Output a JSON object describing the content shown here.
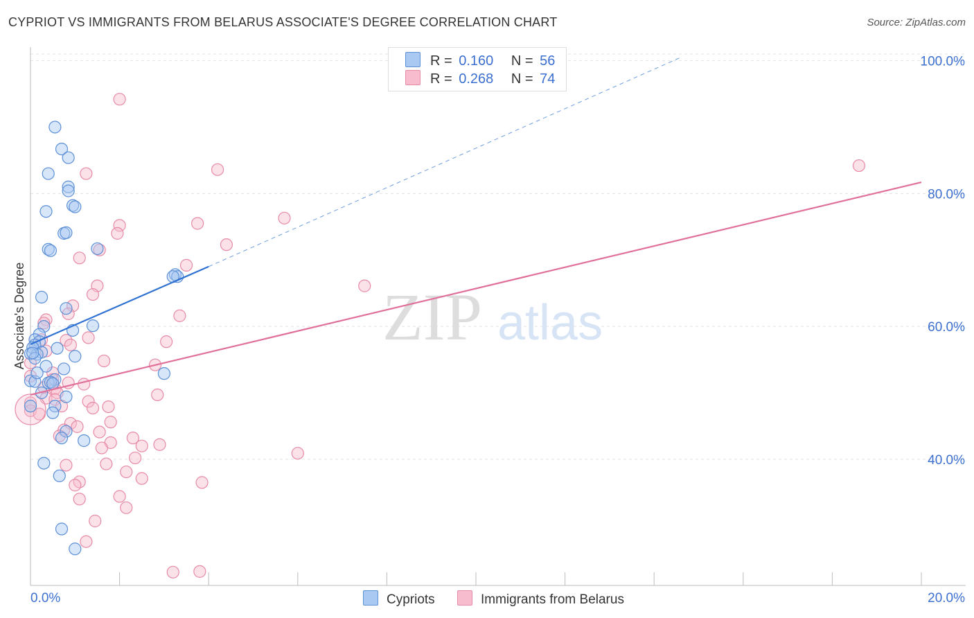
{
  "title": "CYPRIOT VS IMMIGRANTS FROM BELARUS ASSOCIATE'S DEGREE CORRELATION CHART",
  "source": "Source: ZipAtlas.com",
  "watermark": {
    "zip": "ZIP",
    "atlas": "atlas"
  },
  "legend": {
    "r_label": "R =",
    "n_label": "N =",
    "series": [
      {
        "r": "0.160",
        "n": "56"
      },
      {
        "r": "0.268",
        "n": "74"
      }
    ]
  },
  "colors": {
    "cypriots_fill": "#a9c8f2",
    "cypriots_stroke": "#5b8fd6",
    "cypriots_line": "#2f72d3",
    "belarus_fill": "#f7bccd",
    "belarus_stroke": "#e78aa6",
    "belarus_line": "#e0709a",
    "grid": "#e2e2e2",
    "axis_label": "#3b6fd0"
  },
  "chart_data": {
    "type": "scatter",
    "title": "CYPRIOT VS IMMIGRANTS FROM BELARUS ASSOCIATE'S DEGREE CORRELATION CHART",
    "xlabel": "",
    "ylabel": "Associate's Degree",
    "xlim": [
      0,
      20
    ],
    "ylim": [
      21,
      101
    ],
    "x_tick_labels": [
      "0.0%",
      "20.0%"
    ],
    "y_ticks": [
      40,
      60,
      80,
      100
    ],
    "y_tick_labels": [
      "40.0%",
      "60.0%",
      "80.0%",
      "100.0%"
    ],
    "grid": true,
    "legend_position": "top-center",
    "series": [
      {
        "name": "Cypriots",
        "r": 0.16,
        "n": 56,
        "trend": {
          "x": [
            0,
            4
          ],
          "y": [
            57.3,
            69.0
          ]
        },
        "trend_dashed": {
          "x": [
            4,
            14.6
          ],
          "y": [
            69.0,
            100.5
          ]
        },
        "points": [
          [
            0.55,
            90.0
          ],
          [
            0.7,
            86.7
          ],
          [
            0.85,
            85.4
          ],
          [
            0.4,
            83.0
          ],
          [
            0.85,
            81.0
          ],
          [
            0.85,
            80.4
          ],
          [
            0.95,
            78.2
          ],
          [
            1.0,
            78.0
          ],
          [
            0.35,
            77.3
          ],
          [
            0.75,
            74.0
          ],
          [
            0.8,
            74.1
          ],
          [
            0.4,
            71.6
          ],
          [
            0.45,
            71.4
          ],
          [
            1.5,
            71.7
          ],
          [
            3.25,
            67.8
          ],
          [
            3.3,
            67.5
          ],
          [
            3.2,
            67.5
          ],
          [
            0.25,
            64.4
          ],
          [
            0.8,
            62.7
          ],
          [
            1.4,
            60.1
          ],
          [
            0.3,
            60.0
          ],
          [
            0.95,
            59.4
          ],
          [
            0.2,
            58.8
          ],
          [
            0.1,
            58.0
          ],
          [
            0.2,
            57.7
          ],
          [
            0.1,
            57.2
          ],
          [
            0.05,
            56.8
          ],
          [
            0.6,
            56.7
          ],
          [
            0.25,
            56.1
          ],
          [
            0.15,
            55.8
          ],
          [
            0.0,
            55.9
          ],
          [
            1.0,
            55.5
          ],
          [
            0.1,
            55.2
          ],
          [
            0.35,
            54.0
          ],
          [
            0.75,
            53.6
          ],
          [
            3.0,
            52.9
          ],
          [
            0.55,
            52.0
          ],
          [
            0.0,
            51.8
          ],
          [
            0.1,
            51.7
          ],
          [
            0.4,
            51.5
          ],
          [
            0.45,
            51.6
          ],
          [
            0.5,
            51.4
          ],
          [
            0.25,
            50.0
          ],
          [
            0.8,
            49.4
          ],
          [
            0.55,
            48.0
          ],
          [
            0.5,
            47.0
          ],
          [
            0.8,
            44.2
          ],
          [
            0.7,
            43.2
          ],
          [
            1.2,
            42.8
          ],
          [
            0.3,
            39.4
          ],
          [
            0.65,
            37.5
          ],
          [
            0.7,
            29.5
          ],
          [
            1.0,
            26.5
          ],
          [
            0.0,
            48.0
          ],
          [
            0.05,
            56.0
          ],
          [
            0.15,
            53.0
          ]
        ]
      },
      {
        "name": "Immigrants from Belarus",
        "r": 0.268,
        "n": 74,
        "trend": {
          "x": [
            0,
            20
          ],
          "y": [
            49.7,
            81.7
          ]
        },
        "points": [
          [
            2.0,
            94.2
          ],
          [
            4.2,
            83.6
          ],
          [
            1.25,
            83.0
          ],
          [
            18.6,
            84.2
          ],
          [
            5.7,
            76.3
          ],
          [
            3.75,
            75.5
          ],
          [
            2.0,
            75.2
          ],
          [
            1.95,
            74.0
          ],
          [
            4.4,
            72.3
          ],
          [
            1.55,
            71.5
          ],
          [
            1.1,
            70.3
          ],
          [
            3.5,
            69.2
          ],
          [
            7.5,
            66.1
          ],
          [
            1.5,
            66.1
          ],
          [
            1.4,
            64.8
          ],
          [
            0.95,
            63.1
          ],
          [
            3.35,
            61.6
          ],
          [
            0.85,
            61.9
          ],
          [
            0.35,
            61.0
          ],
          [
            0.3,
            60.5
          ],
          [
            0.25,
            58.0
          ],
          [
            0.8,
            57.9
          ],
          [
            3.05,
            57.7
          ],
          [
            0.9,
            57.2
          ],
          [
            1.3,
            58.3
          ],
          [
            0.35,
            56.3
          ],
          [
            1.65,
            54.8
          ],
          [
            2.8,
            54.2
          ],
          [
            0.0,
            54.5
          ],
          [
            0.5,
            53.0
          ],
          [
            0.5,
            52.0
          ],
          [
            0.85,
            51.5
          ],
          [
            1.2,
            51.3
          ],
          [
            0.3,
            50.8
          ],
          [
            0.55,
            50.6
          ],
          [
            0.6,
            50.0
          ],
          [
            2.85,
            49.7
          ],
          [
            0.35,
            49.2
          ],
          [
            0.55,
            49.0
          ],
          [
            1.3,
            48.7
          ],
          [
            0.0,
            48.5
          ],
          [
            1.75,
            47.9
          ],
          [
            1.4,
            47.7
          ],
          [
            0.7,
            48.0
          ],
          [
            0.0,
            47.3
          ],
          [
            1.8,
            45.6
          ],
          [
            0.9,
            45.4
          ],
          [
            1.05,
            44.9
          ],
          [
            0.75,
            44.4
          ],
          [
            1.55,
            44.1
          ],
          [
            0.65,
            43.5
          ],
          [
            2.3,
            43.2
          ],
          [
            1.8,
            42.5
          ],
          [
            2.5,
            42.0
          ],
          [
            2.9,
            42.2
          ],
          [
            1.6,
            41.7
          ],
          [
            6.0,
            40.9
          ],
          [
            2.35,
            40.2
          ],
          [
            1.7,
            39.3
          ],
          [
            0.8,
            39.1
          ],
          [
            2.15,
            38.1
          ],
          [
            2.5,
            37.1
          ],
          [
            3.85,
            36.5
          ],
          [
            1.1,
            36.6
          ],
          [
            1.0,
            36.1
          ],
          [
            2.0,
            34.4
          ],
          [
            1.1,
            34.0
          ],
          [
            2.15,
            32.7
          ],
          [
            1.45,
            30.7
          ],
          [
            1.25,
            27.6
          ],
          [
            3.2,
            23.0
          ],
          [
            3.8,
            23.1
          ],
          [
            0.0,
            52.5
          ],
          [
            0.2,
            46.8
          ]
        ]
      }
    ]
  },
  "bottom_legend": [
    "Cypriots",
    "Immigrants from Belarus"
  ]
}
